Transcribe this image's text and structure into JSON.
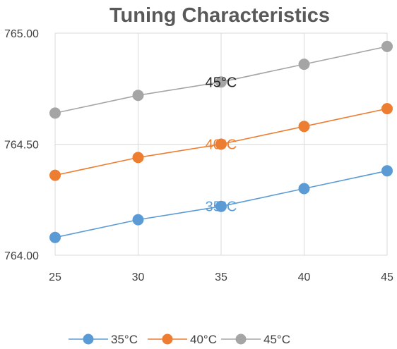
{
  "chart_data": {
    "type": "line",
    "title": "Tuning Characteristics",
    "x": [
      25,
      30,
      35,
      40,
      45
    ],
    "x_tick_labels": [
      "25",
      "30",
      "35",
      "40",
      "45"
    ],
    "ylim": [
      764.0,
      765.0
    ],
    "y_ticks": [
      764.0,
      764.5,
      765.0
    ],
    "y_tick_labels": [
      "764.00",
      "764.50",
      "765.00"
    ],
    "grid": true,
    "legend_position": "bottom",
    "series": [
      {
        "name": "35°C",
        "label": "35°C",
        "color": "#5b9bd5",
        "values": [
          764.08,
          764.16,
          764.22,
          764.3,
          764.38
        ]
      },
      {
        "name": "40°C",
        "label": "40°C",
        "color": "#ed7d31",
        "values": [
          764.36,
          764.44,
          764.5,
          764.58,
          764.66
        ]
      },
      {
        "name": "45°C",
        "label": "45°C",
        "color": "#a5a5a5",
        "label_color": "#262626",
        "values": [
          764.64,
          764.72,
          764.78,
          764.86,
          764.94
        ]
      }
    ]
  }
}
